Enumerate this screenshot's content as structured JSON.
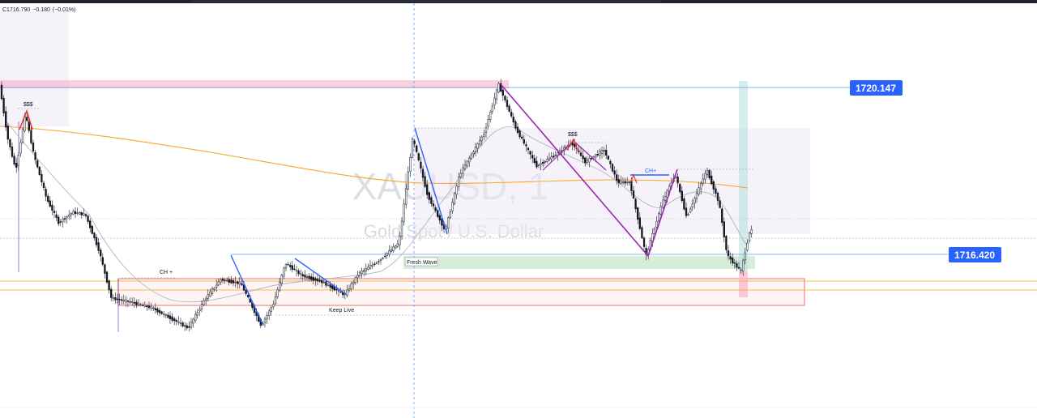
{
  "header": {
    "ohlc_text": "C1716.790",
    "change": "−0.180",
    "change_pct": "(−0.01%)"
  },
  "chart_data": {
    "type": "candlestick",
    "symbol": "XAUUSD, 1",
    "description": "Gold Spot / U.S. Dollar",
    "price_labels": [
      "1720.147",
      "1716.420"
    ],
    "annotations": [
      "$$$",
      "CH +",
      "Keep Live",
      "Fresh Wave",
      "$$$",
      "CH+"
    ],
    "colors": {
      "up": "#131722",
      "down": "#131722",
      "price_label_bg": "#2962ff",
      "moving_average_slow": "#f5a623",
      "moving_average_fast": "#b2b5be",
      "zone_red": "#e53935",
      "zone_pink": "#f8bbd0",
      "zone_green": "#c8e6c9",
      "zone_lavender": "#ede7f6",
      "drawing_blue": "#2962ff",
      "drawing_purple": "#9c27b0",
      "drawing_red": "#e53935"
    }
  }
}
